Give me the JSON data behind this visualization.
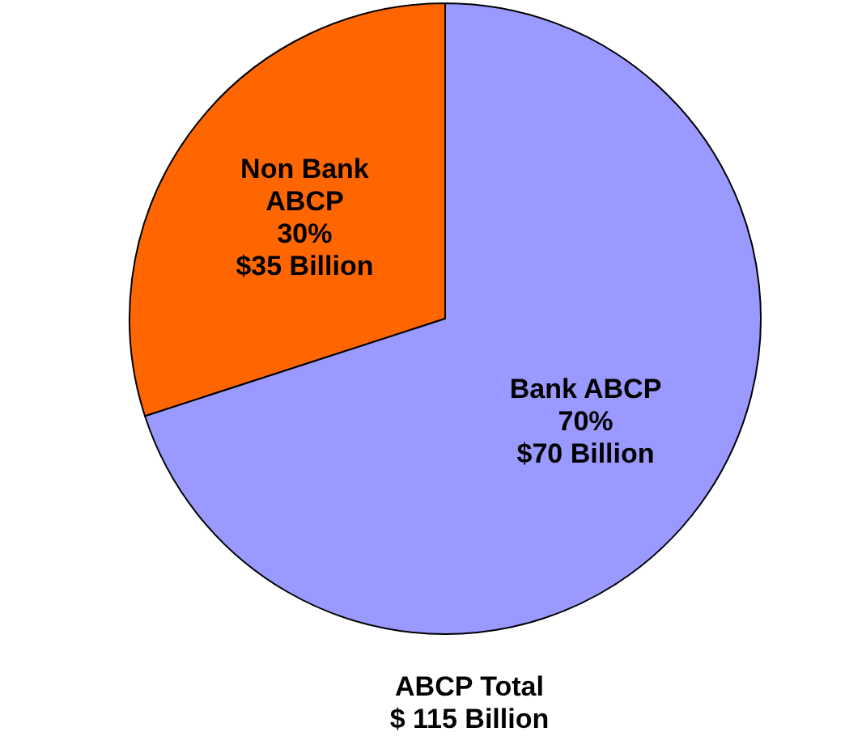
{
  "chart_data": {
    "type": "pie",
    "categories": [
      "Non Bank ABCP",
      "Bank ABCP"
    ],
    "values": [
      30,
      70
    ],
    "colors": [
      "#ff6600",
      "#9999ff"
    ],
    "value_labels": [
      "30%\n$35 Billion",
      "70%\n$70 Billion"
    ],
    "annotations": [
      "ABCP Total\n$ 115 Billion"
    ]
  }
}
